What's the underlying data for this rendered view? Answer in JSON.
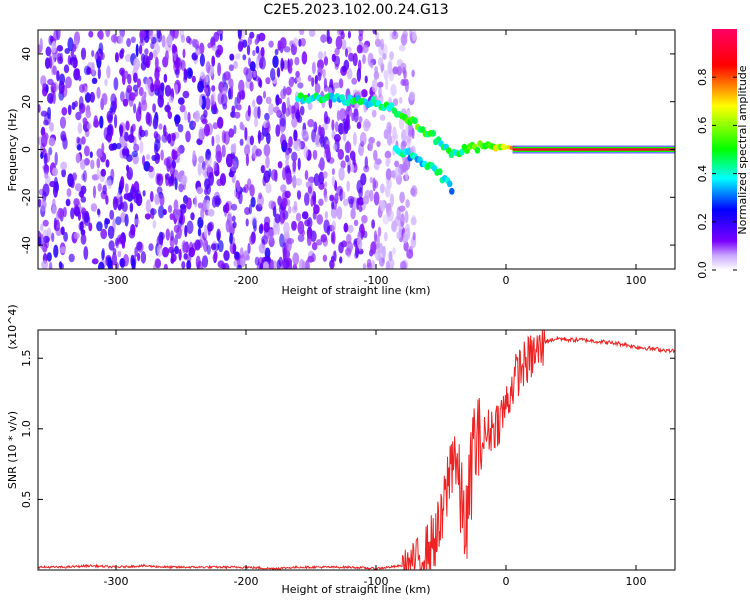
{
  "title": "C2E5.2023.102.00.24.G13",
  "chart_data": [
    {
      "type": "heatmap",
      "xlabel": "Height of straight line (km)",
      "ylabel": "Frequency (Hz)",
      "xlim": [
        -360,
        130
      ],
      "ylim": [
        -50,
        50
      ],
      "x_ticks": [
        -300,
        -200,
        -100,
        0,
        100
      ],
      "y_ticks": [
        -40,
        -20,
        0,
        20,
        40
      ],
      "colorbar": {
        "label": "Normalized spectral amplitude",
        "range": [
          0.0,
          1.0
        ],
        "ticks": [
          0.0,
          0.2,
          0.4,
          0.6,
          0.8
        ],
        "colormap": [
          "#ffffff",
          "#7a00ff",
          "#0000ff",
          "#00ffff",
          "#00ff00",
          "#ffff00",
          "#ff0000",
          "#ff0066"
        ]
      },
      "noise_region": {
        "x_range": [
          -360,
          -80
        ],
        "y_range": [
          -50,
          50
        ],
        "amplitude": "0.1-0.35"
      },
      "signal_trace": [
        {
          "x": -160,
          "y": 22,
          "v": 0.45
        },
        {
          "x": -150,
          "y": 22,
          "v": 0.4
        },
        {
          "x": -140,
          "y": 22,
          "v": 0.45
        },
        {
          "x": -130,
          "y": 21,
          "v": 0.4
        },
        {
          "x": -120,
          "y": 21,
          "v": 0.45
        },
        {
          "x": -110,
          "y": 20,
          "v": 0.4
        },
        {
          "x": -100,
          "y": 20,
          "v": 0.4
        },
        {
          "x": -90,
          "y": 18,
          "v": 0.4
        },
        {
          "x": -80,
          "y": 15,
          "v": 0.45
        },
        {
          "x": -70,
          "y": 11,
          "v": 0.5
        },
        {
          "x": -60,
          "y": 7,
          "v": 0.5
        },
        {
          "x": -50,
          "y": 3,
          "v": 0.45
        },
        {
          "x": -40,
          "y": -2,
          "v": 0.4
        },
        {
          "x": -30,
          "y": 0,
          "v": 0.5
        },
        {
          "x": -20,
          "y": 1,
          "v": 0.55
        },
        {
          "x": -10,
          "y": 2,
          "v": 0.6
        },
        {
          "x": 0,
          "y": 1,
          "v": 0.65
        },
        {
          "x": 10,
          "y": 0,
          "v": 0.95
        },
        {
          "x": 50,
          "y": 0,
          "v": 0.95
        },
        {
          "x": 100,
          "y": 0,
          "v": 0.95
        },
        {
          "x": 130,
          "y": 0,
          "v": 0.95
        }
      ],
      "secondary_trace": [
        {
          "x": -85,
          "y": 0,
          "v": 0.35
        },
        {
          "x": -70,
          "y": -3,
          "v": 0.4
        },
        {
          "x": -55,
          "y": -8,
          "v": 0.4
        },
        {
          "x": -45,
          "y": -14,
          "v": 0.35
        },
        {
          "x": -40,
          "y": -18,
          "v": 0.3
        }
      ]
    },
    {
      "type": "line",
      "xlabel": "Height of straight line (km)",
      "ylabel": "SNR (10 * v/v)",
      "y_multiplier": "(x10^4)",
      "xlim": [
        -360,
        130
      ],
      "ylim": [
        0,
        1.7
      ],
      "x_ticks": [
        -300,
        -200,
        -100,
        0,
        100
      ],
      "y_ticks": [
        0.5,
        1.0,
        1.5
      ],
      "color": "#ee2222",
      "series": [
        {
          "x": [
            -360,
            -340,
            -320,
            -300,
            -280,
            -260,
            -240,
            -220,
            -200,
            -180,
            -160,
            -140,
            -120,
            -100,
            -90,
            -80,
            -70,
            -60,
            -50,
            -45,
            -40,
            -35,
            -30,
            -25,
            -20,
            -15,
            -10,
            -5,
            0,
            5,
            10,
            20,
            30,
            40,
            50,
            60,
            70,
            80,
            90,
            100,
            110,
            120,
            130
          ],
          "values": [
            0.02,
            0.02,
            0.03,
            0.02,
            0.03,
            0.02,
            0.02,
            0.02,
            0.02,
            0.01,
            0.02,
            0.02,
            0.02,
            0.01,
            0.02,
            0.03,
            0.06,
            0.15,
            0.3,
            0.6,
            0.9,
            0.5,
            0.3,
            0.9,
            0.9,
            1.0,
            1.05,
            1.1,
            1.2,
            1.35,
            1.45,
            1.55,
            1.62,
            1.64,
            1.63,
            1.63,
            1.62,
            1.61,
            1.6,
            1.58,
            1.57,
            1.56,
            1.55
          ]
        }
      ]
    }
  ]
}
